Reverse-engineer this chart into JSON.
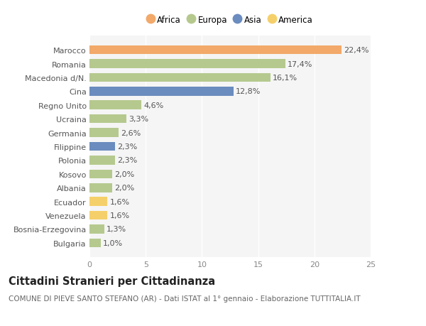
{
  "countries": [
    "Bulgaria",
    "Bosnia-Erzegovina",
    "Venezuela",
    "Ecuador",
    "Albania",
    "Kosovo",
    "Polonia",
    "Filippine",
    "Germania",
    "Ucraina",
    "Regno Unito",
    "Cina",
    "Macedonia d/N.",
    "Romania",
    "Marocco"
  ],
  "values": [
    1.0,
    1.3,
    1.6,
    1.6,
    2.0,
    2.0,
    2.3,
    2.3,
    2.6,
    3.3,
    4.6,
    12.8,
    16.1,
    17.4,
    22.4
  ],
  "labels": [
    "1,0%",
    "1,3%",
    "1,6%",
    "1,6%",
    "2,0%",
    "2,0%",
    "2,3%",
    "2,3%",
    "2,6%",
    "3,3%",
    "4,6%",
    "12,8%",
    "16,1%",
    "17,4%",
    "22,4%"
  ],
  "continents": [
    "Europa",
    "Europa",
    "America",
    "America",
    "Europa",
    "Europa",
    "Europa",
    "Asia",
    "Europa",
    "Europa",
    "Europa",
    "Asia",
    "Europa",
    "Europa",
    "Africa"
  ],
  "colors": {
    "Africa": "#F2A96A",
    "Europa": "#B5C98E",
    "Asia": "#6B8CBE",
    "America": "#F5D06A"
  },
  "legend_order": [
    "Africa",
    "Europa",
    "Asia",
    "America"
  ],
  "title": "Cittadini Stranieri per Cittadinanza",
  "subtitle": "COMUNE DI PIEVE SANTO STEFANO (AR) - Dati ISTAT al 1° gennaio - Elaborazione TUTTITALIA.IT",
  "xlim": [
    0,
    25
  ],
  "xticks": [
    0,
    5,
    10,
    15,
    20,
    25
  ],
  "bg_color": "#ffffff",
  "plot_bg_color": "#f5f5f5",
  "grid_color": "#ffffff",
  "bar_height": 0.65,
  "label_fontsize": 8,
  "tick_fontsize": 8,
  "ylabel_fontsize": 8,
  "title_fontsize": 10.5,
  "subtitle_fontsize": 7.5
}
